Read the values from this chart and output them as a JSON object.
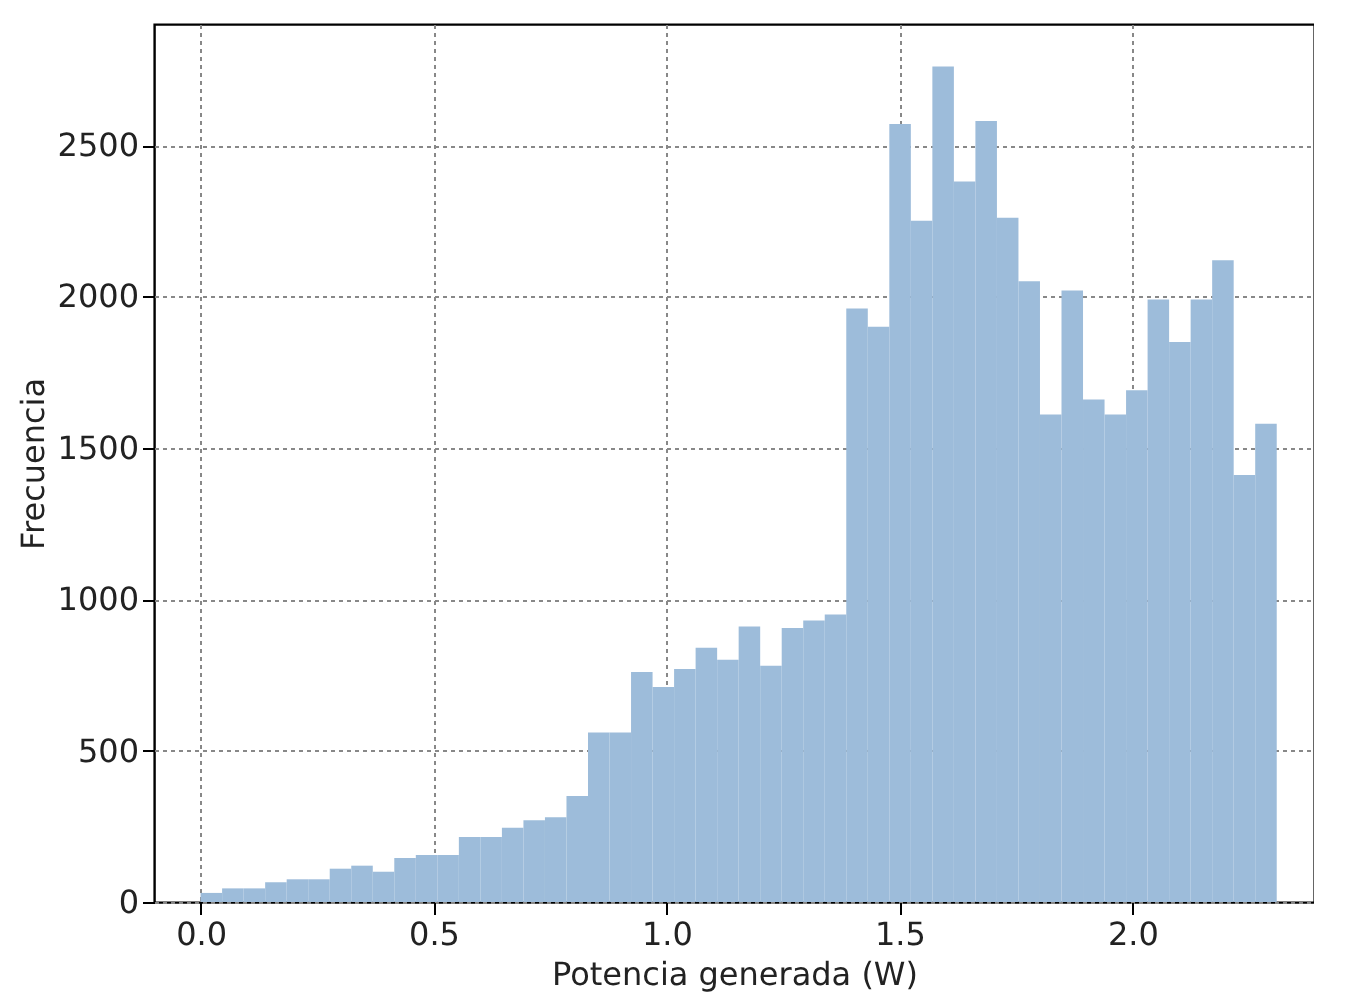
{
  "chart_data": {
    "type": "histogram",
    "xlabel": "Potencia generada (W)",
    "ylabel": "Frecuencia",
    "color": "#9dbcda",
    "bins": [
      0,
      0.0462,
      0.0924,
      0.1386,
      0.1848,
      0.231,
      0.2772,
      0.3234,
      0.3696,
      0.4158,
      0.462,
      0.5082,
      0.5544,
      0.6006,
      0.6468,
      0.693,
      0.7392,
      0.7854,
      0.8316,
      0.8778,
      0.924,
      0.9702,
      1.0164,
      1.0626,
      1.1088,
      1.155,
      1.2012,
      1.2474,
      1.2936,
      1.3398,
      1.386,
      1.4322,
      1.4784,
      1.5246,
      1.5708,
      1.617,
      1.6632,
      1.7094,
      1.7556,
      1.8018,
      1.848,
      1.8942,
      1.9404,
      1.9866,
      2.0328,
      2.079,
      2.1252,
      2.1714,
      2.2176,
      2.2638,
      2.31
    ],
    "values": [
      30,
      45,
      45,
      65,
      75,
      75,
      110,
      120,
      100,
      145,
      155,
      155,
      215,
      215,
      245,
      270,
      280,
      350,
      560,
      560,
      760,
      710,
      770,
      840,
      800,
      910,
      780,
      905,
      930,
      950,
      1960,
      1900,
      2570,
      2250,
      2760,
      2380,
      2580,
      2260,
      2050,
      1610,
      2020,
      1660,
      1610,
      1690,
      1990,
      1850,
      1990,
      2120,
      1410,
      1580
    ],
    "xlim": [
      -0.1,
      2.39
    ],
    "xticks": [
      {
        "value": 0,
        "label": "0.0"
      },
      {
        "value": 0.5,
        "label": "0.5"
      },
      {
        "value": 1,
        "label": "1.0"
      },
      {
        "value": 1.5,
        "label": "1.5"
      },
      {
        "value": 2,
        "label": "2.0"
      }
    ],
    "ylim": [
      0,
      2900
    ],
    "yticks": [
      0,
      500,
      1000,
      1500,
      2000,
      2500
    ],
    "grid": true
  }
}
